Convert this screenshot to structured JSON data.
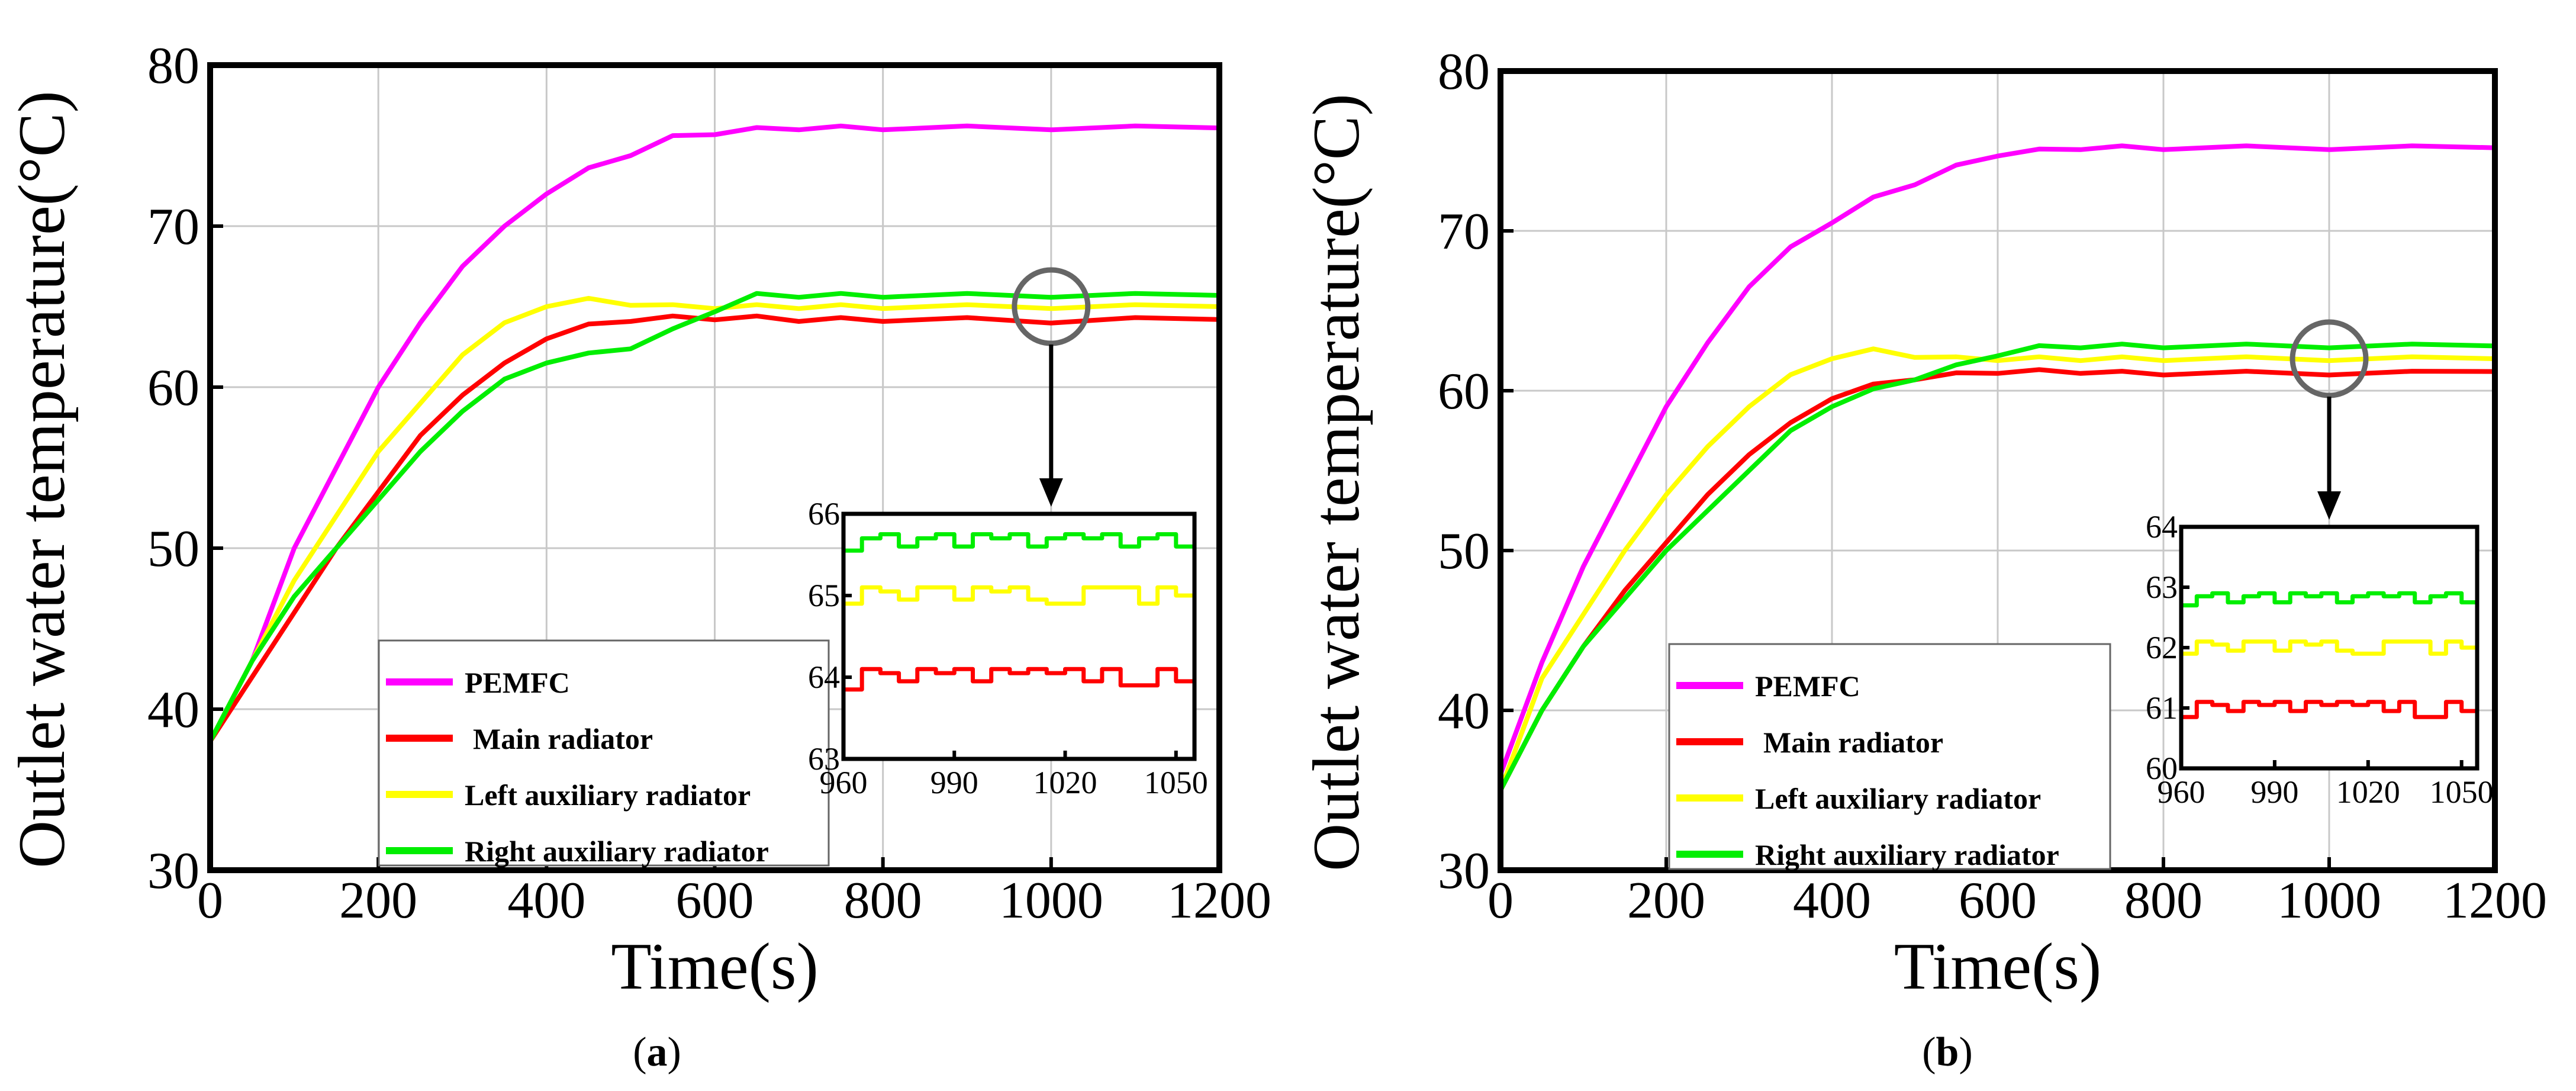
{
  "chart_data": [
    {
      "type": "line",
      "panel_label": "(a)",
      "title": "",
      "xlabel": "Time(s)",
      "ylabel": "Outlet water temperature(°C)",
      "xlim": [
        0,
        1200
      ],
      "ylim": [
        30,
        80
      ],
      "xticks": [
        0,
        200,
        400,
        600,
        800,
        1000,
        1200
      ],
      "yticks": [
        30,
        40,
        50,
        60,
        70,
        80
      ],
      "grid": true,
      "legend_position": "bottom-center",
      "series": [
        {
          "name": "PEMFC",
          "color": "#ff00ff",
          "x": [
            0,
            50,
            100,
            150,
            200,
            250,
            300,
            350,
            400,
            450,
            500,
            550,
            600,
            650,
            700,
            750,
            800,
            900,
            1000,
            1100,
            1200
          ],
          "y": [
            38,
            43,
            50,
            55,
            60,
            64,
            67.5,
            70,
            72,
            73.5,
            74.5,
            75.5,
            75.8,
            76,
            76.1,
            76.1,
            76.1,
            76.1,
            76.1,
            76.1,
            76.1
          ]
        },
        {
          "name": "Main radiator",
          "color": "#ff0000",
          "x": [
            0,
            50,
            100,
            150,
            200,
            250,
            300,
            350,
            400,
            450,
            500,
            550,
            600,
            650,
            700,
            750,
            800,
            900,
            1000,
            1100,
            1200
          ],
          "y": [
            38,
            42,
            46,
            50,
            53.5,
            57,
            59.5,
            61.5,
            63,
            63.8,
            64.2,
            64.3,
            64.3,
            64.3,
            64.2,
            64.2,
            64.2,
            64.2,
            64.1,
            64.2,
            64.2
          ]
        },
        {
          "name": "Left auxiliary radiator",
          "color": "#ffff00",
          "x": [
            0,
            50,
            100,
            150,
            200,
            250,
            300,
            350,
            400,
            450,
            500,
            550,
            600,
            650,
            700,
            750,
            800,
            900,
            1000,
            1100,
            1200
          ],
          "y": [
            38,
            43,
            48,
            52,
            56,
            59,
            62,
            64,
            65,
            65.4,
            65.2,
            65,
            65,
            65,
            65,
            65,
            65,
            65,
            65,
            65,
            65
          ]
        },
        {
          "name": "Right auxiliary radiator",
          "color": "#00ee00",
          "x": [
            0,
            50,
            100,
            150,
            200,
            250,
            300,
            350,
            400,
            450,
            500,
            550,
            600,
            650,
            700,
            750,
            800,
            900,
            1000,
            1100,
            1200
          ],
          "y": [
            38,
            43,
            47,
            50,
            53,
            56,
            58.5,
            60.5,
            61.5,
            62,
            62.5,
            63.5,
            64.8,
            65.7,
            65.7,
            65.7,
            65.7,
            65.7,
            65.7,
            65.7,
            65.7
          ]
        }
      ],
      "inset": {
        "xlim": [
          960,
          1055
        ],
        "ylim": [
          63,
          66
        ],
        "xticks": [
          960,
          990,
          1020,
          1050
        ],
        "yticks": [
          63,
          64,
          65,
          66
        ],
        "series": [
          {
            "name": "PEMFC",
            "color": "#ff00ff",
            "x": [],
            "y": []
          },
          {
            "name": "Main radiator",
            "color": "#ff0000",
            "x": [
              960,
              965,
              970,
              975,
              980,
              985,
              990,
              995,
              1000,
              1005,
              1010,
              1015,
              1020,
              1025,
              1030,
              1035,
              1040,
              1045,
              1050,
              1055
            ],
            "y": [
              63.85,
              64.1,
              64.05,
              63.95,
              64.1,
              64.05,
              64.1,
              63.95,
              64.1,
              64.05,
              64.1,
              64.05,
              64.1,
              63.95,
              64.1,
              63.9,
              63.9,
              64.1,
              63.95,
              64.15
            ]
          },
          {
            "name": "Left auxiliary radiator",
            "color": "#ffff00",
            "x": [
              960,
              965,
              970,
              975,
              980,
              985,
              990,
              995,
              1000,
              1005,
              1010,
              1015,
              1020,
              1025,
              1030,
              1035,
              1040,
              1045,
              1050,
              1055
            ],
            "y": [
              64.9,
              65.1,
              65.05,
              64.95,
              65.1,
              65.1,
              64.95,
              65.1,
              65.05,
              65.1,
              64.95,
              64.9,
              64.9,
              65.1,
              65.1,
              65.1,
              64.9,
              65.1,
              65,
              65.1
            ]
          },
          {
            "name": "Right auxiliary radiator",
            "color": "#00ee00",
            "x": [
              960,
              965,
              970,
              975,
              980,
              985,
              990,
              995,
              1000,
              1005,
              1010,
              1015,
              1020,
              1025,
              1030,
              1035,
              1040,
              1045,
              1050,
              1055
            ],
            "y": [
              65.55,
              65.7,
              65.75,
              65.6,
              65.7,
              65.75,
              65.6,
              65.75,
              65.7,
              65.75,
              65.6,
              65.7,
              65.75,
              65.7,
              65.75,
              65.6,
              65.7,
              65.75,
              65.6,
              65.75
            ]
          }
        ]
      },
      "callout_point": {
        "x": 1000,
        "y": 65
      }
    },
    {
      "type": "line",
      "panel_label": "(b)",
      "title": "",
      "xlabel": "Time(s)",
      "ylabel": "Outlet water temperature(°C)",
      "xlim": [
        0,
        1200
      ],
      "ylim": [
        30,
        80
      ],
      "xticks": [
        0,
        200,
        400,
        600,
        800,
        1000,
        1200
      ],
      "yticks": [
        30,
        40,
        50,
        60,
        70,
        80
      ],
      "grid": true,
      "legend_position": "bottom-center",
      "series": [
        {
          "name": "PEMFC",
          "color": "#ff00ff",
          "x": [
            0,
            50,
            100,
            150,
            200,
            250,
            300,
            350,
            400,
            450,
            500,
            550,
            600,
            650,
            700,
            750,
            800,
            900,
            1000,
            1100,
            1200
          ],
          "y": [
            36,
            43,
            49,
            54,
            59,
            63,
            66.5,
            69,
            70.5,
            72,
            73,
            74,
            74.8,
            75,
            75.2,
            75.2,
            75.2,
            75.2,
            75.2,
            75.2,
            75.2
          ]
        },
        {
          "name": "Main radiator",
          "color": "#ff0000",
          "x": [
            0,
            50,
            100,
            150,
            200,
            250,
            300,
            350,
            400,
            450,
            500,
            550,
            600,
            650,
            700,
            750,
            800,
            900,
            1000,
            1100,
            1200
          ],
          "y": [
            35,
            40,
            44,
            47.5,
            50.5,
            53.5,
            56,
            58,
            59.5,
            60.3,
            60.8,
            61,
            61.2,
            61.2,
            61.2,
            61.1,
            61.1,
            61.1,
            61.1,
            61.1,
            61.2
          ]
        },
        {
          "name": "Left auxiliary radiator",
          "color": "#ffff00",
          "x": [
            0,
            50,
            100,
            150,
            200,
            250,
            300,
            350,
            400,
            450,
            500,
            550,
            600,
            650,
            700,
            750,
            800,
            900,
            1000,
            1100,
            1200
          ],
          "y": [
            35,
            42,
            46,
            50,
            53.5,
            56.5,
            59,
            61,
            62,
            62.5,
            62.2,
            62,
            62,
            62,
            62,
            62,
            62,
            62,
            62,
            62,
            62
          ]
        },
        {
          "name": "Right auxiliary radiator",
          "color": "#00ee00",
          "x": [
            0,
            50,
            100,
            150,
            200,
            250,
            300,
            350,
            400,
            450,
            500,
            550,
            600,
            650,
            700,
            750,
            800,
            900,
            1000,
            1100,
            1200
          ],
          "y": [
            35,
            40,
            44,
            47,
            50,
            52.5,
            55,
            57.5,
            59,
            60,
            60.8,
            61.5,
            62.3,
            62.7,
            62.8,
            62.8,
            62.8,
            62.8,
            62.8,
            62.8,
            62.8
          ]
        }
      ],
      "inset": {
        "xlim": [
          960,
          1055
        ],
        "ylim": [
          60,
          64
        ],
        "xticks": [
          960,
          990,
          1020,
          1050
        ],
        "yticks": [
          60,
          61,
          62,
          63,
          64
        ],
        "series": [
          {
            "name": "PEMFC",
            "color": "#ff00ff",
            "x": [],
            "y": []
          },
          {
            "name": "Main radiator",
            "color": "#ff0000",
            "x": [
              960,
              965,
              970,
              975,
              980,
              985,
              990,
              995,
              1000,
              1005,
              1010,
              1015,
              1020,
              1025,
              1030,
              1035,
              1040,
              1045,
              1050,
              1055
            ],
            "y": [
              60.85,
              61.1,
              61.05,
              60.95,
              61.1,
              61.05,
              61.1,
              60.95,
              61.1,
              61.05,
              61.1,
              61.05,
              61.1,
              60.95,
              61.1,
              60.85,
              60.85,
              61.1,
              60.95,
              61.15
            ]
          },
          {
            "name": "Left auxiliary radiator",
            "color": "#ffff00",
            "x": [
              960,
              965,
              970,
              975,
              980,
              985,
              990,
              995,
              1000,
              1005,
              1010,
              1015,
              1020,
              1025,
              1030,
              1035,
              1040,
              1045,
              1050,
              1055
            ],
            "y": [
              61.9,
              62.1,
              62.05,
              61.95,
              62.1,
              62.1,
              61.95,
              62.1,
              62.05,
              62.1,
              61.95,
              61.9,
              61.9,
              62.1,
              62.1,
              62.1,
              61.9,
              62.1,
              62,
              62.1
            ]
          },
          {
            "name": "Right auxiliary radiator",
            "color": "#00ee00",
            "x": [
              960,
              965,
              970,
              975,
              980,
              985,
              990,
              995,
              1000,
              1005,
              1010,
              1015,
              1020,
              1025,
              1030,
              1035,
              1040,
              1045,
              1050,
              1055
            ],
            "y": [
              62.7,
              62.85,
              62.9,
              62.75,
              62.85,
              62.9,
              62.75,
              62.9,
              62.85,
              62.9,
              62.75,
              62.85,
              62.9,
              62.85,
              62.9,
              62.75,
              62.85,
              62.9,
              62.75,
              62.9
            ]
          }
        ]
      },
      "callout_point": {
        "x": 1000,
        "y": 62
      }
    }
  ]
}
